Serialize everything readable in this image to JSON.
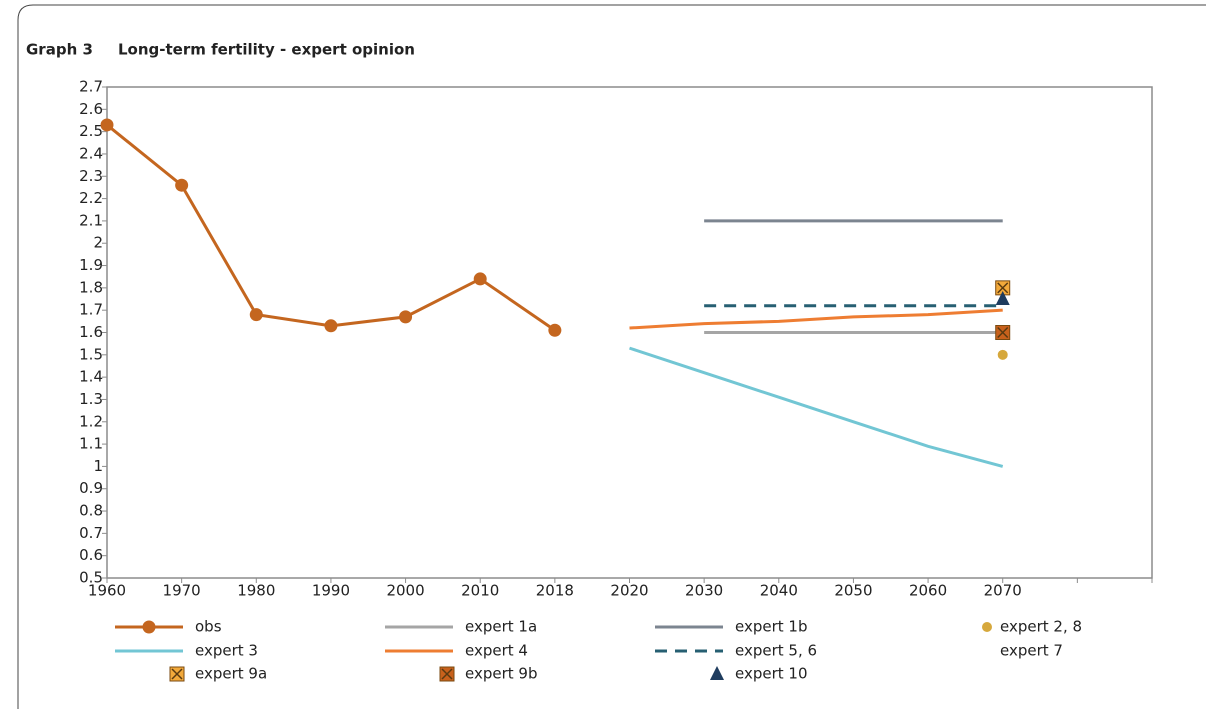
{
  "chart_data": {
    "type": "line",
    "label": "Graph 3",
    "title": "Long-term fertility - expert opinion",
    "categories": [
      "1960",
      "1970",
      "1980",
      "1990",
      "2000",
      "2010",
      "2018",
      "2020",
      "2030",
      "2040",
      "2050",
      "2060",
      "2070",
      null
    ],
    "ylim": [
      0.5,
      2.7
    ],
    "yticks": [
      0.5,
      0.6,
      0.7,
      0.8,
      0.9,
      1,
      1.1,
      1.2,
      1.3,
      1.4,
      1.5,
      1.6,
      1.7,
      1.8,
      1.9,
      2,
      2.1,
      2.2,
      2.3,
      2.4,
      2.5,
      2.6,
      2.7
    ],
    "grid": false,
    "series": [
      {
        "name": "obs",
        "color": "#c4661f",
        "line": true,
        "marker": "circle",
        "values": [
          2.53,
          2.26,
          1.68,
          1.63,
          1.67,
          1.84,
          1.61,
          null,
          null,
          null,
          null,
          null,
          null,
          null
        ]
      },
      {
        "name": "expert 1a",
        "color": "#a5a5a5",
        "line": true,
        "marker": "none",
        "values": [
          null,
          null,
          null,
          null,
          null,
          null,
          null,
          null,
          1.6,
          1.6,
          1.6,
          1.6,
          1.6,
          null
        ]
      },
      {
        "name": "expert 1b",
        "color": "#7c8590",
        "line": true,
        "marker": "none",
        "values": [
          null,
          null,
          null,
          null,
          null,
          null,
          null,
          null,
          2.1,
          2.1,
          2.1,
          2.1,
          2.1,
          null
        ]
      },
      {
        "name": "expert 2, 8",
        "color": "#d6a83c",
        "line": false,
        "marker": "dot",
        "values": [
          null,
          null,
          null,
          null,
          null,
          null,
          null,
          null,
          null,
          null,
          null,
          null,
          1.5,
          null
        ]
      },
      {
        "name": "expert 3",
        "color": "#72c6d4",
        "line": true,
        "marker": "none",
        "values": [
          null,
          null,
          null,
          null,
          null,
          null,
          null,
          1.53,
          1.42,
          1.31,
          1.2,
          1.09,
          1.0,
          null
        ]
      },
      {
        "name": "expert 4",
        "color": "#ee7d32",
        "line": true,
        "marker": "none",
        "values": [
          null,
          null,
          null,
          null,
          null,
          null,
          null,
          1.62,
          1.64,
          1.65,
          1.67,
          1.68,
          1.7,
          null
        ]
      },
      {
        "name": "expert 5, 6",
        "color": "#265f72",
        "line": true,
        "dash": true,
        "marker": "none",
        "values": [
          null,
          null,
          null,
          null,
          null,
          null,
          null,
          null,
          1.72,
          1.72,
          1.72,
          1.72,
          1.72,
          null
        ]
      },
      {
        "name": "expert 7",
        "color": "#ffffff",
        "line": false,
        "marker": "none",
        "values": [
          null,
          null,
          null,
          null,
          null,
          null,
          null,
          null,
          null,
          null,
          null,
          null,
          null,
          null
        ]
      },
      {
        "name": "expert 9a",
        "color": "#f2a93b",
        "line": false,
        "marker": "xsquare",
        "values": [
          null,
          null,
          null,
          null,
          null,
          null,
          null,
          null,
          null,
          null,
          null,
          null,
          1.8,
          null
        ]
      },
      {
        "name": "expert 9b",
        "color": "#c8611c",
        "line": false,
        "marker": "xsquare",
        "values": [
          null,
          null,
          null,
          null,
          null,
          null,
          null,
          null,
          null,
          null,
          null,
          null,
          1.6,
          null
        ]
      },
      {
        "name": "expert 10",
        "color": "#1f3c5e",
        "line": false,
        "marker": "triangle",
        "values": [
          null,
          null,
          null,
          null,
          null,
          null,
          null,
          null,
          null,
          null,
          null,
          null,
          1.75,
          null
        ]
      }
    ]
  }
}
